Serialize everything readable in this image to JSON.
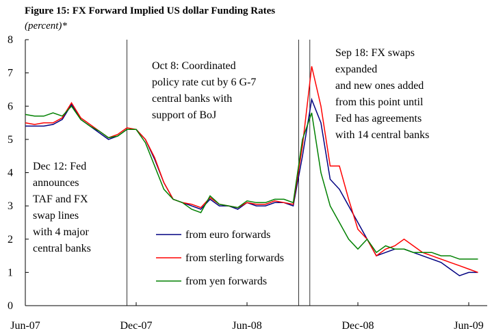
{
  "chart_data": {
    "type": "line",
    "title": "Figure 15: FX Forward Implied US dollar Funding Rates",
    "subtitle": "(percent)*",
    "x": [
      0,
      0.5,
      1,
      1.5,
      2,
      2.5,
      3,
      3.5,
      4,
      4.5,
      5,
      5.5,
      6,
      6.5,
      7,
      7.5,
      8,
      8.5,
      9,
      9.5,
      10,
      10.5,
      11,
      11.5,
      12,
      12.5,
      13,
      13.5,
      14,
      14.5,
      15,
      15.5,
      16,
      16.5,
      17,
      17.5,
      18,
      18.5,
      19,
      19.5,
      20,
      20.5,
      21,
      21.5,
      22,
      22.5,
      23,
      23.5,
      24,
      24.5
    ],
    "series": [
      {
        "name": "from euro forwards",
        "color": "#000080",
        "values": [
          5.4,
          5.4,
          5.4,
          5.45,
          5.6,
          6.05,
          5.6,
          5.4,
          5.2,
          5.0,
          5.1,
          5.3,
          5.3,
          5.0,
          4.4,
          3.7,
          3.2,
          3.1,
          3.0,
          2.9,
          3.2,
          3.0,
          3.0,
          2.9,
          3.1,
          3.0,
          3.0,
          3.1,
          3.1,
          3.0,
          4.5,
          6.2,
          5.5,
          3.8,
          3.5,
          3.0,
          2.5,
          2.0,
          1.5,
          1.6,
          1.7,
          1.7,
          1.6,
          1.5,
          1.4,
          1.3,
          1.1,
          0.9,
          1.0,
          1.0
        ]
      },
      {
        "name": "from sterling forwards",
        "color": "#ff0000",
        "values": [
          5.5,
          5.45,
          5.5,
          5.5,
          5.65,
          6.1,
          5.65,
          5.45,
          5.25,
          5.05,
          5.15,
          5.35,
          5.3,
          5.0,
          4.45,
          3.7,
          3.2,
          3.1,
          3.05,
          2.95,
          3.25,
          3.05,
          3.0,
          2.95,
          3.1,
          3.05,
          3.05,
          3.15,
          3.1,
          3.05,
          4.8,
          7.2,
          6.0,
          4.2,
          4.2,
          3.2,
          2.3,
          2.0,
          1.5,
          1.7,
          1.8,
          2.0,
          1.8,
          1.6,
          1.5,
          1.4,
          1.3,
          1.2,
          1.1,
          1.0
        ]
      },
      {
        "name": "from yen forwards",
        "color": "#008000",
        "values": [
          5.75,
          5.7,
          5.7,
          5.8,
          5.7,
          6.0,
          5.6,
          5.4,
          5.25,
          5.05,
          5.1,
          5.3,
          5.3,
          4.9,
          4.2,
          3.5,
          3.2,
          3.1,
          2.9,
          2.8,
          3.3,
          3.05,
          3.0,
          2.95,
          3.15,
          3.1,
          3.1,
          3.2,
          3.2,
          3.1,
          5.0,
          5.8,
          4.0,
          3.0,
          2.5,
          2.0,
          1.7,
          2.0,
          1.6,
          1.8,
          1.7,
          1.7,
          1.6,
          1.6,
          1.6,
          1.5,
          1.5,
          1.4,
          1.4,
          1.4
        ]
      }
    ],
    "xlim": [
      0,
      25
    ],
    "xticks": [
      {
        "value": 0,
        "label": "Jun-07"
      },
      {
        "value": 6,
        "label": "Dec-07"
      },
      {
        "value": 12,
        "label": "Jun-08"
      },
      {
        "value": 18,
        "label": "Dec-08"
      },
      {
        "value": 24,
        "label": "Jun-09"
      }
    ],
    "ylim": [
      0,
      8
    ],
    "yticks": [
      0,
      1,
      2,
      3,
      4,
      5,
      6,
      7,
      8
    ],
    "events": [
      {
        "x": 5.5,
        "lines": [
          "Dec 12: Fed",
          "announces",
          "TAF and FX",
          "swap lines",
          "with 4 major",
          "central banks"
        ]
      },
      {
        "x": 14.8,
        "lines": [
          "Oct 8: Coordinated",
          "policy rate cut by 6 G-7",
          "central banks with",
          "support of BoJ"
        ]
      },
      {
        "x": 15.4,
        "lines": [
          "Sep 18: FX swaps",
          "expanded",
          "and new ones added",
          "from this point until",
          "Fed has agreements",
          "with 14 central banks"
        ]
      }
    ]
  }
}
